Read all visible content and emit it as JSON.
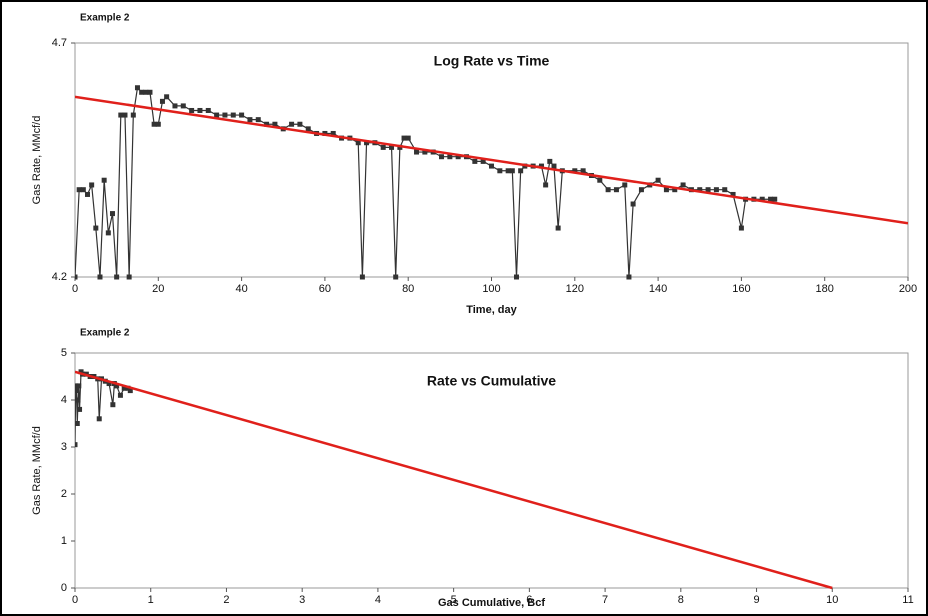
{
  "chart_data": [
    {
      "type": "line",
      "label": "Example 2",
      "title": "Log Rate vs Time",
      "x_label": "Time, day",
      "y_label": "Gas Rate, MMcf/d",
      "xlim": [
        0,
        200
      ],
      "xticks": [
        0,
        20,
        40,
        60,
        80,
        100,
        120,
        140,
        160,
        180,
        200
      ],
      "ylim": [
        4.2,
        4.7
      ],
      "yticks": [
        4.2,
        4.7
      ],
      "log_y": true,
      "series": [
        {
          "color": "#333333",
          "markers": true,
          "x": [
            0,
            1,
            2,
            3,
            4,
            5,
            6,
            7,
            8,
            9,
            10,
            11,
            12,
            13,
            14,
            15,
            16,
            17,
            18,
            19,
            20,
            21,
            22,
            24,
            26,
            28,
            30,
            32,
            34,
            36,
            38,
            40,
            42,
            44,
            46,
            48,
            50,
            52,
            54,
            56,
            58,
            60,
            62,
            64,
            66,
            68,
            69,
            70,
            72,
            74,
            76,
            77,
            78,
            79,
            80,
            82,
            84,
            86,
            88,
            90,
            92,
            94,
            96,
            98,
            100,
            102,
            104,
            105,
            106,
            107,
            108,
            110,
            112,
            113,
            114,
            115,
            116,
            117,
            120,
            122,
            124,
            126,
            128,
            130,
            132,
            133,
            134,
            136,
            138,
            140,
            142,
            144,
            146,
            148,
            150,
            152,
            154,
            156,
            158,
            160,
            161,
            163,
            165,
            167,
            168
          ],
          "values": [
            4.2,
            4.38,
            4.38,
            4.37,
            4.39,
            4.3,
            4.2,
            4.4,
            4.29,
            4.33,
            4.2,
            4.54,
            4.54,
            4.2,
            4.54,
            4.6,
            4.59,
            4.59,
            4.59,
            4.52,
            4.52,
            4.57,
            4.58,
            4.56,
            4.56,
            4.55,
            4.55,
            4.55,
            4.54,
            4.54,
            4.54,
            4.54,
            4.53,
            4.53,
            4.52,
            4.52,
            4.51,
            4.52,
            4.52,
            4.51,
            4.5,
            4.5,
            4.5,
            4.49,
            4.49,
            4.48,
            4.2,
            4.48,
            4.48,
            4.47,
            4.47,
            4.2,
            4.47,
            4.49,
            4.49,
            4.46,
            4.46,
            4.46,
            4.45,
            4.45,
            4.45,
            4.45,
            4.44,
            4.44,
            4.43,
            4.42,
            4.42,
            4.42,
            4.2,
            4.42,
            4.43,
            4.43,
            4.43,
            4.39,
            4.44,
            4.43,
            4.3,
            4.42,
            4.42,
            4.42,
            4.41,
            4.4,
            4.38,
            4.38,
            4.39,
            4.2,
            4.35,
            4.38,
            4.39,
            4.4,
            4.38,
            4.38,
            4.39,
            4.38,
            4.38,
            4.38,
            4.38,
            4.38,
            4.37,
            4.3,
            4.36,
            4.36,
            4.36,
            4.36,
            4.36
          ]
        },
        {
          "color": "#e0201b",
          "markers": false,
          "x": [
            0,
            200
          ],
          "values": [
            4.58,
            4.31
          ]
        }
      ]
    },
    {
      "type": "line",
      "label": "Example 2",
      "title": "Rate vs Cumulative",
      "x_label": "Gas Cumulative, Bcf",
      "y_label": "Gas Rate, MMcf/d",
      "xlim": [
        0,
        11
      ],
      "xticks": [
        0,
        1,
        2,
        3,
        4,
        5,
        6,
        7,
        8,
        9,
        10,
        11
      ],
      "ylim": [
        0,
        5
      ],
      "yticks": [
        0,
        1,
        2,
        3,
        4,
        5
      ],
      "log_y": false,
      "series": [
        {
          "color": "#333333",
          "markers": true,
          "x": [
            0.0,
            0.01,
            0.02,
            0.03,
            0.04,
            0.05,
            0.06,
            0.08,
            0.1,
            0.15,
            0.2,
            0.25,
            0.3,
            0.32,
            0.35,
            0.4,
            0.45,
            0.5,
            0.52,
            0.55,
            0.6,
            0.65,
            0.7,
            0.73
          ],
          "values": [
            3.05,
            4.3,
            4.2,
            3.5,
            4.0,
            4.3,
            3.8,
            4.6,
            4.55,
            4.55,
            4.5,
            4.5,
            4.45,
            3.6,
            4.45,
            4.4,
            4.35,
            3.9,
            4.35,
            4.3,
            4.1,
            4.25,
            4.25,
            4.2
          ]
        },
        {
          "color": "#e0201b",
          "markers": false,
          "x": [
            0,
            10
          ],
          "values": [
            4.6,
            0
          ]
        }
      ]
    }
  ]
}
